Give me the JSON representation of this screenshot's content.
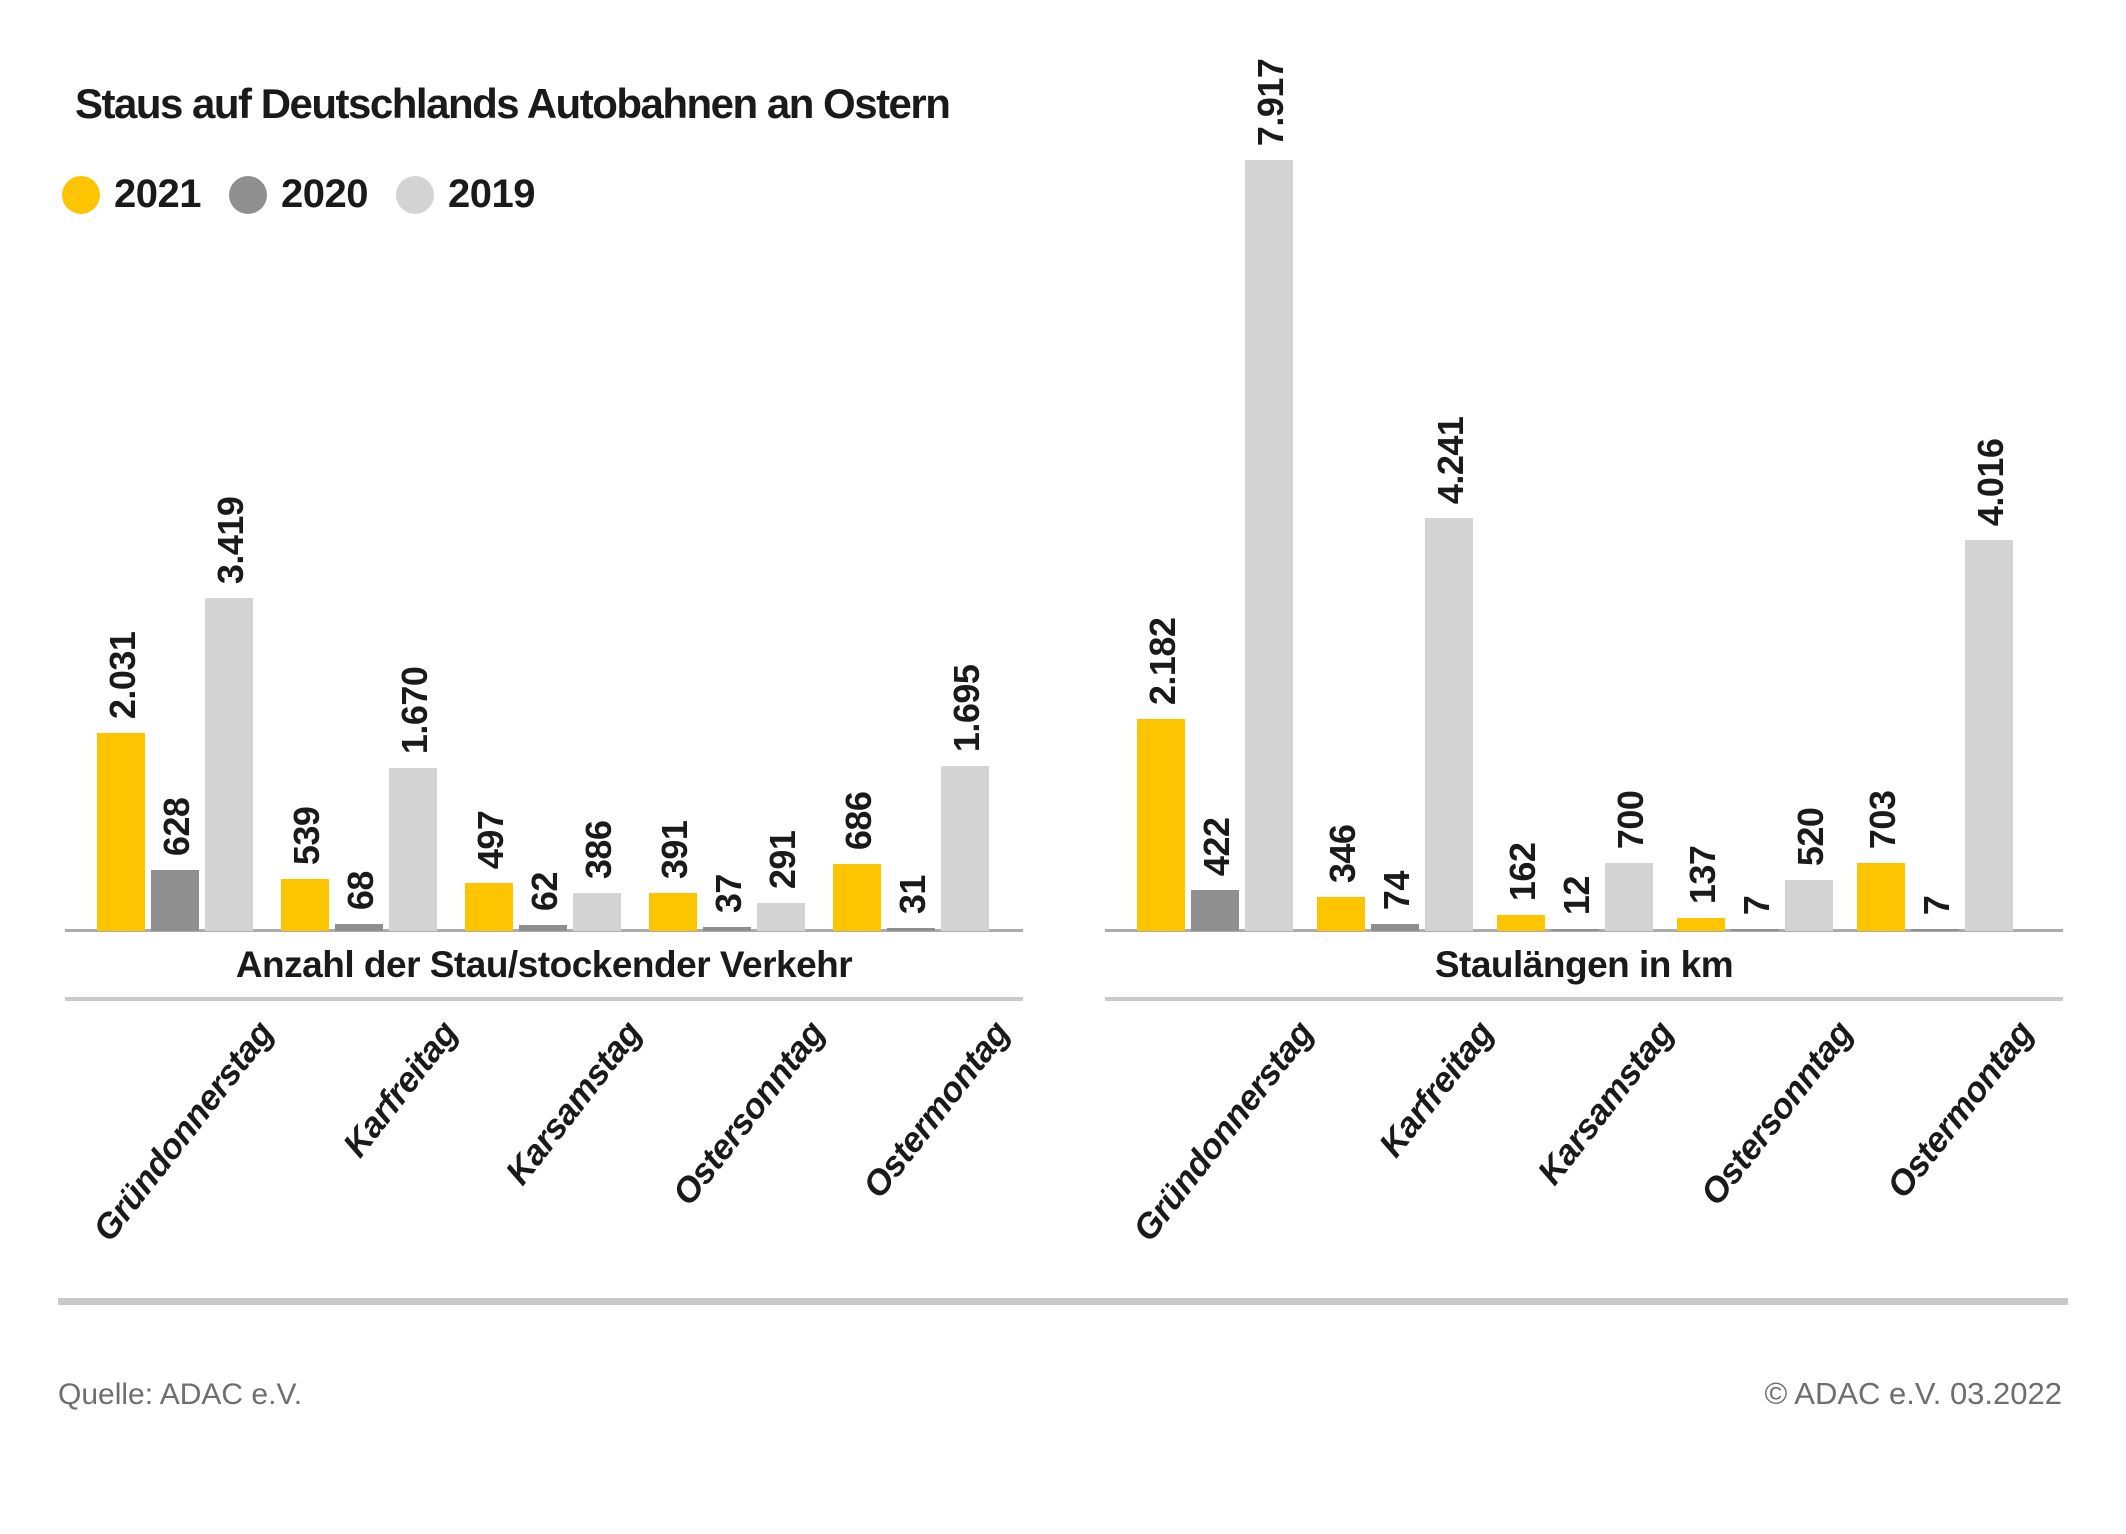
{
  "title": "Staus auf Deutschlands Autobahnen an Ostern",
  "legend": [
    {
      "label": "2021",
      "color": "#FDC500"
    },
    {
      "label": "2020",
      "color": "#8F8F8F"
    },
    {
      "label": "2019",
      "color": "#D3D3D3"
    }
  ],
  "chart_data": [
    {
      "type": "bar",
      "title": "Anzahl der Stau/stockender Verkehr",
      "slug": "anzahl",
      "categories": [
        "Gründonnerstag",
        "Karfreitag",
        "Karsamstag",
        "Ostersonntag",
        "Ostermontag"
      ],
      "series": [
        {
          "name": "2021",
          "color": "#FDC500",
          "values": [
            2031,
            539,
            497,
            391,
            686
          ],
          "labels": [
            "2.031",
            "539",
            "497",
            "391",
            "686"
          ]
        },
        {
          "name": "2020",
          "color": "#8F8F8F",
          "values": [
            628,
            68,
            62,
            37,
            31
          ],
          "labels": [
            "628",
            "68",
            "62",
            "37",
            "31"
          ]
        },
        {
          "name": "2019",
          "color": "#D3D3D3",
          "values": [
            3419,
            1670,
            386,
            291,
            1695
          ],
          "labels": [
            "3.419",
            "1.670",
            "386",
            "291",
            "1.695"
          ]
        }
      ],
      "ylim": [
        0,
        8000
      ],
      "grid": "off",
      "legend_position": "top-left"
    },
    {
      "type": "bar",
      "title": "Staulängen in km",
      "slug": "staulaengen",
      "categories": [
        "Gründonnerstag",
        "Karfreitag",
        "Karsamstag",
        "Ostersonntag",
        "Ostermontag"
      ],
      "series": [
        {
          "name": "2021",
          "color": "#FDC500",
          "values": [
            2182,
            346,
            162,
            137,
            703
          ],
          "labels": [
            "2.182",
            "346",
            "162",
            "137",
            "703"
          ]
        },
        {
          "name": "2020",
          "color": "#8F8F8F",
          "values": [
            422,
            74,
            12,
            7,
            7
          ],
          "labels": [
            "422",
            "74",
            "12",
            "7",
            "7"
          ]
        },
        {
          "name": "2019",
          "color": "#D3D3D3",
          "values": [
            7917,
            4241,
            700,
            520,
            4016
          ],
          "labels": [
            "7.917",
            "4.241",
            "700",
            "520",
            "4.016"
          ]
        }
      ],
      "ylim": [
        0,
        8000
      ],
      "grid": "off",
      "legend_position": "shared-top-left"
    }
  ],
  "footer": {
    "source": "Quelle: ADAC e.V.",
    "copyright": "© ADAC e.V. 03.2022"
  }
}
